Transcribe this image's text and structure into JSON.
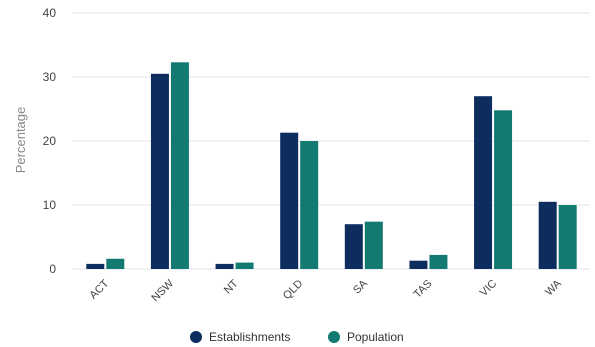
{
  "chart_data": {
    "type": "bar",
    "title": "",
    "xlabel": "",
    "ylabel": "Percentage",
    "ylim": [
      0,
      40
    ],
    "yticks": [
      0,
      10,
      20,
      30,
      40
    ],
    "grid": true,
    "legend_position": "bottom-center",
    "categories": [
      "ACT",
      "NSW",
      "NT",
      "QLD",
      "SA",
      "TAS",
      "VIC",
      "WA"
    ],
    "series": [
      {
        "name": "Establishments",
        "color": "#0d2d5e",
        "values": [
          0.8,
          30.5,
          0.8,
          21.3,
          7.0,
          1.3,
          27.0,
          10.5
        ]
      },
      {
        "name": "Population",
        "color": "#137a72",
        "values": [
          1.6,
          32.3,
          1.0,
          20.0,
          7.4,
          2.2,
          24.8,
          10.0
        ]
      }
    ]
  }
}
